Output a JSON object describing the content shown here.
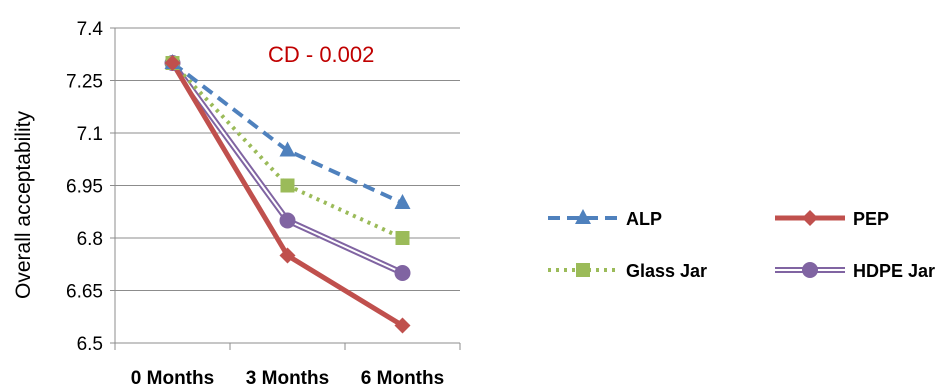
{
  "chart_data": {
    "type": "line",
    "categories": [
      "0 Months",
      "3 Months",
      "6 Months"
    ],
    "ylabel": "Overall acceptability",
    "xlabel": "",
    "ylim": [
      6.5,
      7.4
    ],
    "yticks": [
      "6.5",
      "6.65",
      "6.8",
      "6.95",
      "7.1",
      "7.25",
      "7.4"
    ],
    "grid": true,
    "legend_position": "right",
    "annotation": {
      "text": "CD - 0.002",
      "color": "#c00000"
    },
    "series": [
      {
        "name": "ALP",
        "values": [
          7.3,
          7.05,
          6.9
        ],
        "color": "#4f81bd",
        "marker": "triangle",
        "line": "dashed"
      },
      {
        "name": "PEP",
        "values": [
          7.3,
          6.75,
          6.55
        ],
        "color": "#c0504d",
        "marker": "diamond",
        "line": "solid"
      },
      {
        "name": "Glass Jar",
        "values": [
          7.3,
          6.95,
          6.8
        ],
        "color": "#9bbb59",
        "marker": "square",
        "line": "dotted"
      },
      {
        "name": "HDPE Jar",
        "values": [
          7.3,
          6.85,
          6.7
        ],
        "color": "#8064a2",
        "marker": "circle",
        "line": "double"
      }
    ]
  }
}
